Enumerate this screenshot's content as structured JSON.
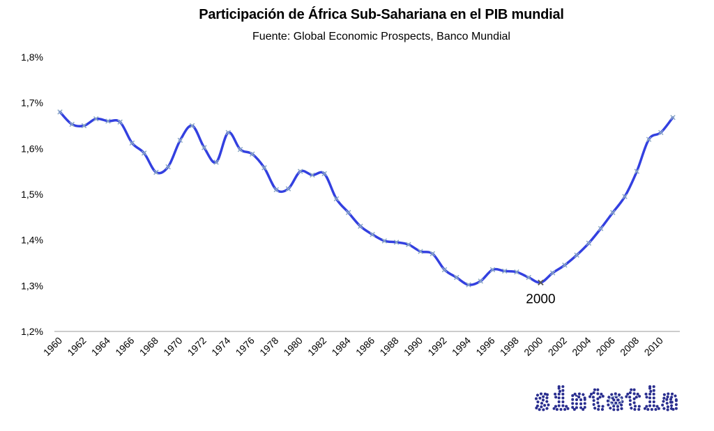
{
  "chart_data": {
    "type": "line",
    "title": "Participación de África Sub-Sahariana en el PIB mundial",
    "subtitle": "Fuente: Global Economic Prospects, Banco Mundial",
    "xlabel": "",
    "ylabel": "",
    "ylim": [
      1.2,
      1.8
    ],
    "yticks": [
      1.2,
      1.3,
      1.4,
      1.5,
      1.6,
      1.7,
      1.8
    ],
    "ytick_labels": [
      "1,2%",
      "1,3%",
      "1,4%",
      "1,5%",
      "1,6%",
      "1,7%",
      "1,8%"
    ],
    "xtick_labels": [
      "1960",
      "1962",
      "1964",
      "1966",
      "1968",
      "1970",
      "1972",
      "1974",
      "1976",
      "1978",
      "1980",
      "1982",
      "1984",
      "1986",
      "1988",
      "1990",
      "1992",
      "1994",
      "1996",
      "1998",
      "2000",
      "2002",
      "2004",
      "2006",
      "2008",
      "2010"
    ],
    "grid": false,
    "legend": "none",
    "series": [
      {
        "color": "#3340e0",
        "marker_color": "#8aa8c4",
        "x": [
          1960,
          1961,
          1962,
          1963,
          1964,
          1965,
          1966,
          1967,
          1968,
          1969,
          1970,
          1971,
          1972,
          1973,
          1974,
          1975,
          1976,
          1977,
          1978,
          1979,
          1980,
          1981,
          1982,
          1983,
          1984,
          1985,
          1986,
          1987,
          1988,
          1989,
          1990,
          1991,
          1992,
          1993,
          1994,
          1995,
          1996,
          1997,
          1998,
          1999,
          2000,
          2001,
          2002,
          2003,
          2004,
          2005,
          2006,
          2007,
          2008,
          2009,
          2010,
          2011
        ],
        "values": [
          1.68,
          1.653,
          1.65,
          1.665,
          1.66,
          1.658,
          1.612,
          1.59,
          1.548,
          1.56,
          1.618,
          1.65,
          1.602,
          1.57,
          1.635,
          1.598,
          1.588,
          1.558,
          1.51,
          1.512,
          1.55,
          1.542,
          1.545,
          1.49,
          1.46,
          1.43,
          1.412,
          1.398,
          1.395,
          1.39,
          1.375,
          1.37,
          1.335,
          1.318,
          1.302,
          1.31,
          1.335,
          1.332,
          1.33,
          1.318,
          1.307,
          1.328,
          1.345,
          1.367,
          1.393,
          1.425,
          1.46,
          1.495,
          1.55,
          1.62,
          1.635,
          1.668
        ]
      }
    ],
    "annotations": [
      {
        "text": "2000",
        "x": 2000,
        "y": 1.307
      }
    ]
  },
  "logo": {
    "text": "sintetia",
    "color": "#2a2e8f"
  }
}
